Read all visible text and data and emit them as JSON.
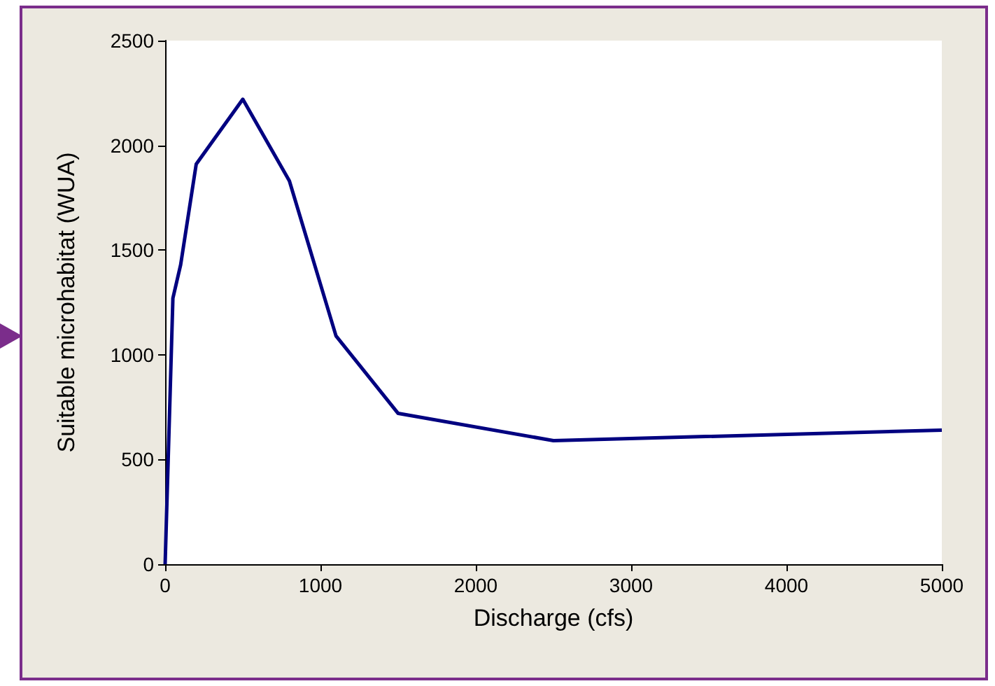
{
  "chart_data": {
    "type": "line",
    "xlabel": "Discharge (cfs)",
    "ylabel": "Suitable microhabitat (WUA)",
    "x": [
      0,
      50,
      100,
      200,
      500,
      800,
      1100,
      1500,
      2500,
      5000
    ],
    "series": [
      {
        "color": "#000080",
        "values": [
          0,
          1270,
          1430,
          1910,
          2220,
          1830,
          1090,
          720,
          590,
          640
        ]
      }
    ],
    "xlim": [
      0,
      5000
    ],
    "xticks": [
      0,
      1000,
      2000,
      3000,
      4000,
      5000
    ],
    "ylim": [
      0,
      2500
    ],
    "yticks": [
      0,
      500,
      1000,
      1500,
      2000,
      2500
    ],
    "grid": false,
    "marker": "none",
    "line_style": "solid"
  }
}
